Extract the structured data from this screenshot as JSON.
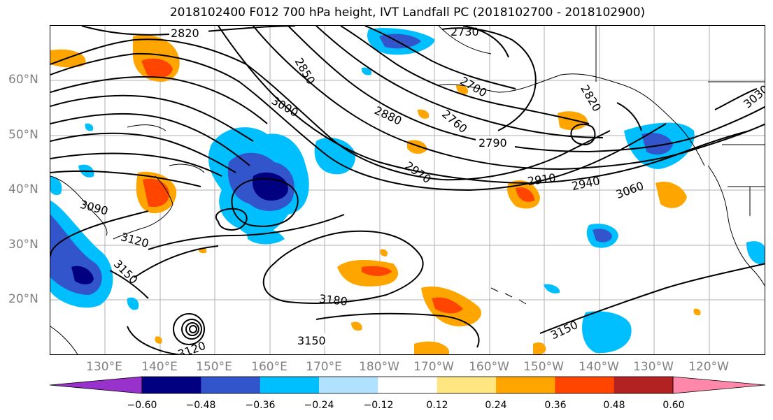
{
  "title": "2018102400 F012 700 hPa height, IVT Landfall PC (2018102700 - 2018102900)",
  "lat_labels": [
    "60°N",
    "50°N",
    "40°N",
    "30°N",
    "20°N"
  ],
  "lon_labels": [
    "130°E",
    "140°E",
    "150°E",
    "160°E",
    "170°E",
    "180°W",
    "170°W",
    "160°W",
    "150°W",
    "140°W",
    "130°W",
    "120°W"
  ],
  "colorbar": {
    "ticks": [
      "−0.60",
      "−0.48",
      "−0.36",
      "−0.24",
      "−0.12",
      "0.12",
      "0.24",
      "0.36",
      "0.48",
      "0.60"
    ],
    "colors": [
      "#9932cc",
      "#000080",
      "#3355cc",
      "#00bfff",
      "#b0e2ff",
      "#ffffff",
      "#ffe680",
      "#ffa500",
      "#ff4500",
      "#b22222",
      "#ff88aa"
    ]
  },
  "contour_labels": [
    "2820",
    "2850",
    "3000",
    "2730",
    "2700",
    "2820",
    "2880",
    "2760",
    "2790",
    "2910",
    "2940",
    "3060",
    "2970",
    "3090",
    "3120",
    "3150",
    "3180",
    "3150",
    "3150",
    "3030",
    "3120"
  ],
  "colors": {
    "contour": "#000000",
    "grid": "#b0b0b0",
    "coast": "#000000",
    "tick_label": "#808080"
  }
}
